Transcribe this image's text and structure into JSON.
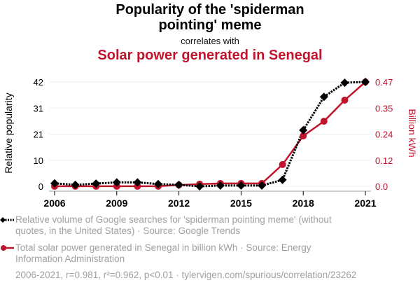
{
  "titles": {
    "line1": "Popularity of the 'spiderman",
    "line2": "pointing' meme",
    "subtitle": "correlates with",
    "line3": "Solar power generated in Senegal"
  },
  "colors": {
    "series1": "#000000",
    "series2": "#c0142d",
    "grid": "#eeeeee",
    "legend_text": "#a0a0a0"
  },
  "legend": {
    "series1": "Relative volume of Google searches for 'spiderman pointing meme' (without quotes, in the United States) · Source: Google Trends",
    "series2": "Total solar power generated in Senegal in billion kWh · Source: Energy Information Administration"
  },
  "footer": "2006-2021, r=0.981, r²=0.962, p<0.01 · tylervigen.com/spurious/correlation/23262",
  "chart_data": {
    "type": "line",
    "title": "Popularity of the 'spiderman pointing' meme correlates with Solar power generated in Senegal",
    "x": [
      2006,
      2007,
      2008,
      2009,
      2010,
      2011,
      2012,
      2013,
      2014,
      2015,
      2016,
      2017,
      2018,
      2019,
      2020,
      2021
    ],
    "xticks": [
      "2006",
      "2009",
      "2012",
      "2015",
      "2018",
      "2021"
    ],
    "xlim": [
      2006,
      2021
    ],
    "ylabel_left": "Relative popularity",
    "ylabel_right": "Billion kWh",
    "yticks_left": [
      "0",
      "10",
      "21",
      "31",
      "42"
    ],
    "yticks_right": [
      "0.0",
      "0.12",
      "0.24",
      "0.35",
      "0.47"
    ],
    "ylim_left": [
      0,
      42
    ],
    "ylim_right": [
      0,
      0.47
    ],
    "grid": true,
    "series": [
      {
        "name": "Relative volume of Google searches for 'spiderman pointing meme'",
        "axis": "left",
        "marker": "diamond",
        "style": "dotted",
        "values": [
          1.2,
          0.6,
          1.1,
          1.6,
          1.6,
          0.9,
          0.6,
          0,
          0.3,
          0.3,
          0.3,
          2.6,
          22.6,
          36,
          41.7,
          42
        ]
      },
      {
        "name": "Total solar power generated in Senegal in billion kWh",
        "axis": "right",
        "marker": "circle",
        "style": "solid",
        "values": [
          0.0003,
          0.0003,
          0.0003,
          0.0003,
          0.0003,
          0.0005,
          0.006,
          0.01,
          0.013,
          0.013,
          0.013,
          0.098,
          0.227,
          0.293,
          0.388,
          0.47
        ]
      }
    ],
    "legend_position": "bottom-left"
  }
}
